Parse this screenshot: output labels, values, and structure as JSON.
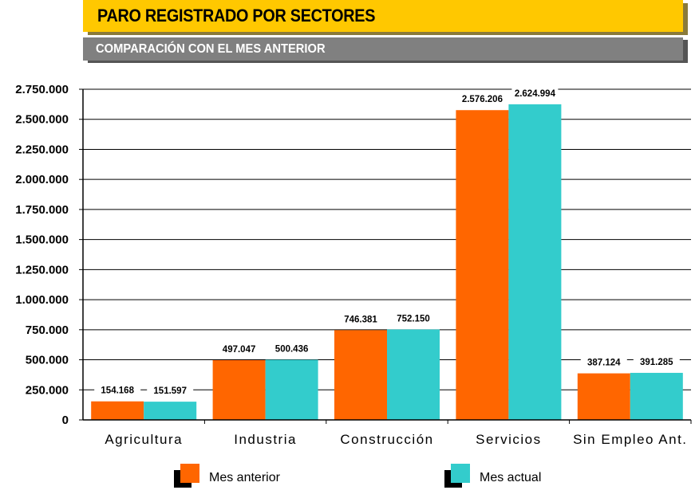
{
  "header": {
    "title": "PARO REGISTRADO POR SECTORES",
    "subtitle": "COMPARACIÓN CON EL MES ANTERIOR"
  },
  "colors": {
    "title_bg": "#ffc800",
    "subtitle_bg": "#808080",
    "series_prev": "#ff6600",
    "series_curr": "#33cccc"
  },
  "chart_data": {
    "type": "bar",
    "categories": [
      "Agricultura",
      "Industria",
      "Construcción",
      "Servicios",
      "Sin Empleo Ant."
    ],
    "series": [
      {
        "name": "Mes anterior",
        "color": "#ff6600",
        "values": [
          154168,
          497047,
          746381,
          2576206,
          387124
        ],
        "labels": [
          "154.168",
          "497.047",
          "746.381",
          "2.576.206",
          "387.124"
        ]
      },
      {
        "name": "Mes actual",
        "color": "#33cccc",
        "values": [
          151597,
          500436,
          752150,
          2624994,
          391285
        ],
        "labels": [
          "151.597",
          "500.436",
          "752.150",
          "2.624.994",
          "391.285"
        ]
      }
    ],
    "yticks": [
      0,
      250000,
      500000,
      750000,
      1000000,
      1250000,
      1500000,
      1750000,
      2000000,
      2250000,
      2500000,
      2750000
    ],
    "ytick_labels": [
      "0",
      "250.000",
      "500.000",
      "750.000",
      "1.000.000",
      "1.250.000",
      "1.500.000",
      "1.750.000",
      "2.000.000",
      "2.250.000",
      "2.500.000",
      "2.750.000"
    ],
    "ylim": [
      0,
      2750000
    ],
    "grid": true,
    "legend_position": "bottom"
  }
}
